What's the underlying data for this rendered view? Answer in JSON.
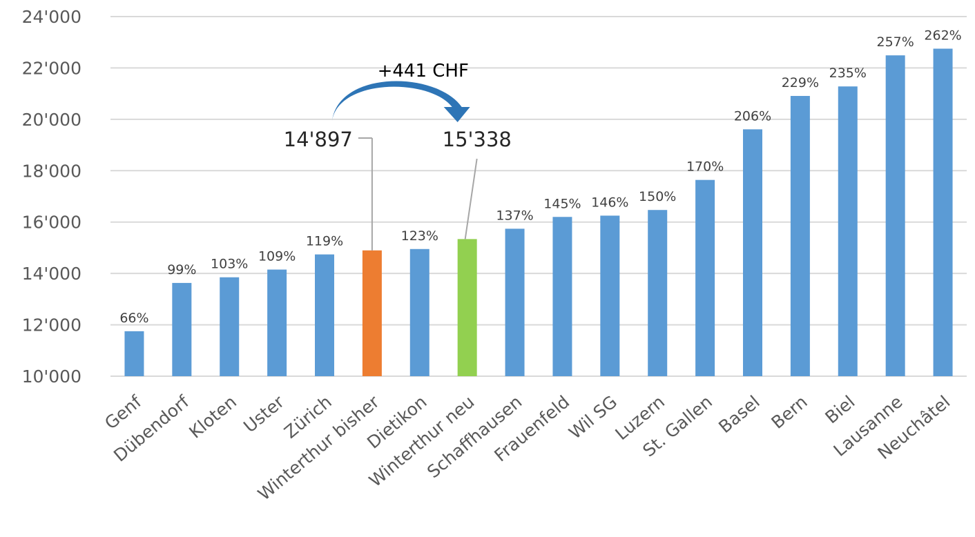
{
  "chart_data": {
    "type": "bar",
    "title": "",
    "xlabel": "",
    "ylabel": "",
    "ylim": [
      10000,
      24000
    ],
    "yticks": [
      10000,
      12000,
      14000,
      16000,
      18000,
      20000,
      22000,
      24000
    ],
    "ytick_labels": [
      "10'000",
      "12'000",
      "14'000",
      "16'000",
      "18'000",
      "20'000",
      "22'000",
      "24'000"
    ],
    "grid": true,
    "legend": "none",
    "categories": [
      "Genf",
      "Dübendorf",
      "Kloten",
      "Uster",
      "Zürich",
      "Winterthur bisher",
      "Dietikon",
      "Winterthur neu",
      "Schaffhausen",
      "Frauenfeld",
      "Wil SG",
      "Luzern",
      "St. Gallen",
      "Basel",
      "Bern",
      "Biel",
      "Lausanne",
      "Neuchâtel"
    ],
    "values": [
      11750,
      13630,
      13850,
      14150,
      14740,
      14897,
      14950,
      15338,
      15740,
      16200,
      16250,
      16470,
      17640,
      19610,
      20910,
      21280,
      22490,
      22750
    ],
    "data_labels": [
      "66%",
      "99%",
      "103%",
      "109%",
      "119%",
      "",
      "123%",
      "",
      "137%",
      "145%",
      "146%",
      "150%",
      "170%",
      "206%",
      "229%",
      "235%",
      "257%",
      "262%"
    ],
    "colors": {
      "default": "#5B9BD5",
      "Winterthur bisher": "#ED7D31",
      "Winterthur neu": "#92D050",
      "arrow": "#2E75B6",
      "leader": "#A6A6A6",
      "grid": "#D9D9D9"
    },
    "annotations": {
      "old_value_label": "14'897",
      "new_value_label": "15'338",
      "difference_label": "+441 CHF"
    }
  }
}
